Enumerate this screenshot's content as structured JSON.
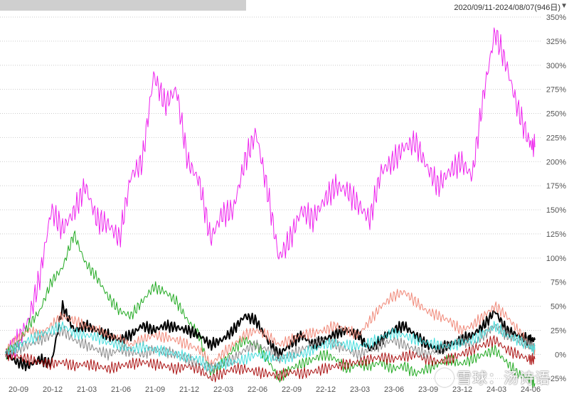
{
  "header": {
    "date_range": "2020/09/11-2024/08/07(946日)",
    "dropdown_icon": "triangle-down-icon"
  },
  "watermark": {
    "text": "雪球：汤诗语",
    "icon": "snowball-logo-icon"
  },
  "chart_data": {
    "type": "line",
    "title": "",
    "xlabel": "",
    "ylabel": "",
    "ylim": [
      -30,
      350
    ],
    "y_ticks": [
      -25,
      0,
      25,
      50,
      75,
      100,
      125,
      150,
      175,
      200,
      225,
      250,
      275,
      300,
      325,
      350
    ],
    "y_tick_labels": [
      "-25%",
      "0%",
      "25%",
      "50%",
      "75%",
      "100%",
      "125%",
      "150%",
      "175%",
      "200%",
      "225%",
      "250%",
      "275%",
      "300%",
      "325%",
      "350%"
    ],
    "x_tick_labels": [
      "20-09",
      "20-12",
      "21-03",
      "21-06",
      "21-09",
      "21-12",
      "22-03",
      "22-06",
      "22-09",
      "22-12",
      "23-03",
      "23-06",
      "23-09",
      "23-12",
      "24-03",
      "24-06"
    ],
    "x_tick_positions": [
      0,
      3,
      6,
      9,
      12,
      15,
      18,
      21,
      24,
      27,
      30,
      33,
      36,
      39,
      42,
      45
    ],
    "x_max": 47,
    "grid": "horizontal dotted",
    "colors": {
      "magenta": "#ee22ee",
      "green": "#22aa22",
      "black": "#000000",
      "salmon": "#f08878",
      "darkred": "#aa1111",
      "gray": "#888888",
      "cyan": "#44dddd"
    },
    "series": [
      {
        "color": "#ee22ee",
        "width": 1,
        "x": [
          0,
          1,
          2,
          3,
          4,
          5,
          6,
          7,
          8,
          9,
          10,
          11,
          12,
          13,
          14,
          15,
          16,
          17,
          18,
          19,
          20,
          21,
          22,
          23,
          24,
          25,
          26,
          27,
          28,
          29,
          30,
          31,
          32,
          33,
          34,
          35,
          36,
          37,
          38,
          39,
          40,
          41,
          42,
          43,
          44,
          45,
          46,
          46.5
        ],
        "values": [
          0,
          12,
          35,
          80,
          150,
          130,
          148,
          175,
          140,
          135,
          120,
          185,
          200,
          290,
          260,
          275,
          200,
          180,
          120,
          145,
          150,
          200,
          230,
          170,
          100,
          120,
          150,
          140,
          160,
          175,
          170,
          155,
          140,
          190,
          200,
          215,
          220,
          195,
          175,
          190,
          200,
          185,
          270,
          335,
          300,
          255,
          220,
          215
        ]
      },
      {
        "color": "#22aa22",
        "width": 1,
        "x": [
          0,
          1,
          2,
          3,
          4,
          5,
          6,
          7,
          8,
          9,
          10,
          11,
          12,
          13,
          14,
          15,
          16,
          17,
          18,
          19,
          20,
          21,
          22,
          23,
          24,
          25,
          26,
          27,
          28,
          29,
          30,
          31,
          32,
          33,
          34,
          35,
          36,
          37,
          38,
          39,
          40,
          41,
          42,
          43,
          44,
          45,
          46,
          46.5
        ],
        "values": [
          0,
          10,
          30,
          45,
          75,
          90,
          125,
          95,
          80,
          60,
          45,
          40,
          55,
          70,
          65,
          55,
          35,
          20,
          -20,
          -10,
          5,
          15,
          10,
          -5,
          -25,
          -15,
          -10,
          -5,
          0,
          -5,
          -15,
          -10,
          -12,
          -8,
          -15,
          -12,
          -20,
          -15,
          -10,
          -5,
          -10,
          -5,
          0,
          5,
          -8,
          -20,
          -25,
          -30
        ]
      },
      {
        "color": "#000000",
        "width": 2,
        "x": [
          0,
          1,
          2,
          3,
          4,
          5,
          6,
          7,
          8,
          9,
          10,
          11,
          12,
          13,
          14,
          15,
          16,
          17,
          18,
          19,
          20,
          21,
          22,
          23,
          24,
          25,
          26,
          27,
          28,
          29,
          30,
          31,
          32,
          33,
          34,
          35,
          36,
          37,
          38,
          39,
          40,
          41,
          42,
          43,
          44,
          45,
          46,
          46.5
        ],
        "values": [
          0,
          -8,
          -12,
          -5,
          -10,
          50,
          25,
          30,
          25,
          20,
          15,
          20,
          30,
          25,
          30,
          28,
          25,
          20,
          10,
          15,
          25,
          40,
          35,
          15,
          0,
          10,
          20,
          10,
          15,
          22,
          25,
          20,
          5,
          15,
          25,
          30,
          20,
          10,
          5,
          10,
          15,
          20,
          30,
          45,
          25,
          20,
          15,
          15
        ]
      },
      {
        "color": "#f08878",
        "width": 1,
        "x": [
          0,
          1,
          2,
          3,
          4,
          5,
          6,
          7,
          8,
          9,
          10,
          11,
          12,
          13,
          14,
          15,
          16,
          17,
          18,
          19,
          20,
          21,
          22,
          23,
          24,
          25,
          26,
          27,
          28,
          29,
          30,
          31,
          32,
          33,
          34,
          35,
          36,
          37,
          38,
          39,
          40,
          41,
          42,
          43,
          44,
          45,
          46,
          46.5
        ],
        "values": [
          5,
          15,
          25,
          20,
          30,
          40,
          35,
          30,
          25,
          20,
          15,
          10,
          15,
          20,
          18,
          15,
          10,
          5,
          -10,
          0,
          10,
          20,
          25,
          20,
          10,
          15,
          20,
          22,
          25,
          30,
          25,
          20,
          35,
          50,
          60,
          65,
          55,
          45,
          40,
          35,
          25,
          30,
          40,
          50,
          40,
          25,
          10,
          5
        ]
      },
      {
        "color": "#aa1111",
        "width": 1,
        "x": [
          0,
          1,
          2,
          3,
          4,
          5,
          6,
          7,
          8,
          9,
          10,
          11,
          12,
          13,
          14,
          15,
          16,
          17,
          18,
          19,
          20,
          21,
          22,
          23,
          24,
          25,
          26,
          27,
          28,
          29,
          30,
          31,
          32,
          33,
          34,
          35,
          36,
          37,
          38,
          39,
          40,
          41,
          42,
          43,
          44,
          45,
          46,
          46.5
        ],
        "values": [
          0,
          -2,
          -5,
          -8,
          -10,
          -8,
          -12,
          -10,
          -12,
          -15,
          -12,
          -10,
          -8,
          -10,
          -12,
          -15,
          -12,
          -15,
          -25,
          -20,
          -15,
          -15,
          -18,
          -20,
          -22,
          -18,
          -20,
          -18,
          -15,
          -12,
          -10,
          -8,
          -5,
          -3,
          -5,
          -2,
          0,
          -5,
          -8,
          -5,
          0,
          5,
          10,
          15,
          5,
          0,
          -5,
          -5
        ]
      },
      {
        "color": "#888888",
        "width": 1,
        "x": [
          0,
          1,
          2,
          3,
          4,
          5,
          6,
          7,
          8,
          9,
          10,
          11,
          12,
          13,
          14,
          15,
          16,
          17,
          18,
          19,
          20,
          21,
          22,
          23,
          24,
          25,
          26,
          27,
          28,
          29,
          30,
          31,
          32,
          33,
          34,
          35,
          36,
          37,
          38,
          39,
          40,
          41,
          42,
          43,
          44,
          45,
          46,
          46.5
        ],
        "values": [
          0,
          5,
          10,
          15,
          20,
          25,
          15,
          10,
          5,
          0,
          5,
          3,
          0,
          5,
          3,
          0,
          -5,
          -10,
          -15,
          -10,
          -5,
          5,
          10,
          5,
          -5,
          0,
          5,
          10,
          15,
          10,
          5,
          0,
          5,
          10,
          15,
          10,
          5,
          0,
          5,
          10,
          15,
          10,
          20,
          30,
          20,
          15,
          10,
          10
        ]
      },
      {
        "color": "#44dddd",
        "width": 1,
        "x": [
          0,
          1,
          2,
          3,
          4,
          5,
          6,
          7,
          8,
          9,
          10,
          11,
          12,
          13,
          14,
          15,
          16,
          17,
          18,
          19,
          20,
          21,
          22,
          23,
          24,
          25,
          26,
          27,
          28,
          29,
          30,
          31,
          32,
          33,
          34,
          35,
          36,
          37,
          38,
          39,
          40,
          41,
          42,
          43,
          44,
          45,
          46,
          46.5
        ],
        "values": [
          2,
          8,
          15,
          20,
          25,
          30,
          22,
          20,
          18,
          12,
          10,
          5,
          8,
          5,
          3,
          0,
          -3,
          -5,
          -15,
          -10,
          -8,
          -5,
          0,
          -2,
          -5,
          -3,
          0,
          5,
          10,
          12,
          10,
          8,
          12,
          18,
          22,
          20,
          15,
          12,
          10,
          8,
          12,
          15,
          22,
          30,
          20,
          15,
          8,
          5
        ]
      }
    ]
  }
}
